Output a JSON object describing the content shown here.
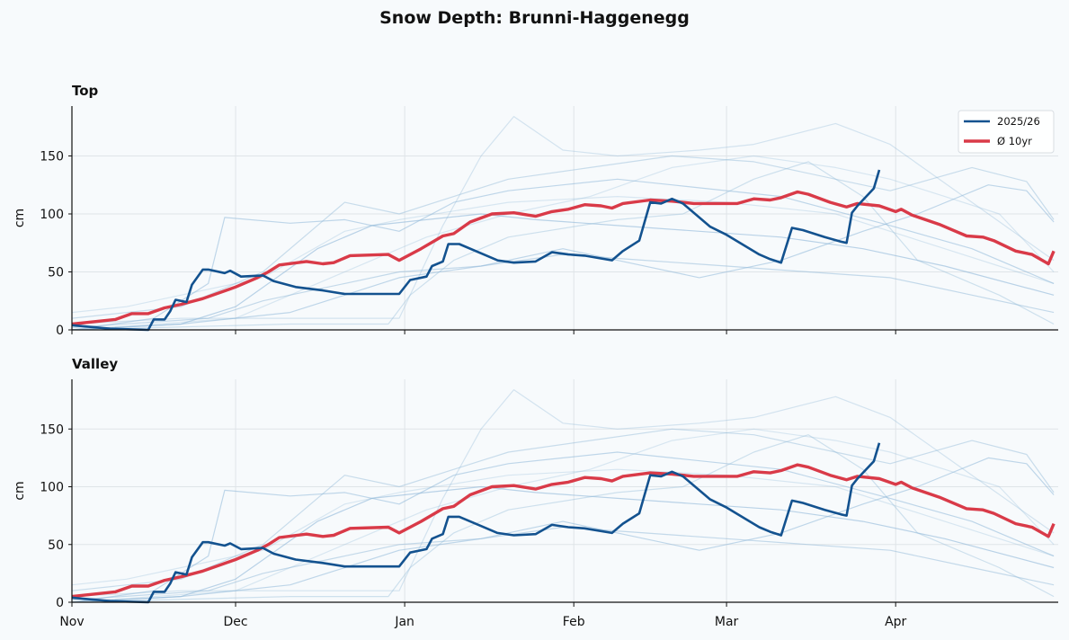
{
  "chart_data": {
    "type": "line",
    "title": "Snow Depth: Brunni-Haggenegg",
    "ylabel": "cm",
    "xlabel": "",
    "ylim": [
      0,
      193
    ],
    "xlim": [
      "11-01",
      "05-01"
    ],
    "x_tick_labels": [
      "Nov",
      "Dec",
      "Jan",
      "Feb",
      "Mar",
      "Apr"
    ],
    "y_ticks": [
      0,
      50,
      100,
      150
    ],
    "grid": true,
    "legend": {
      "placement": "top-right",
      "entries": [
        "2025/26",
        "Ø 10yr"
      ]
    },
    "colors": {
      "current": "#13528f",
      "average": "#d93a48",
      "history": "#8fb8d8",
      "background": "#f7fafc"
    },
    "subplots": [
      {
        "title": "Top",
        "show_legend": true,
        "show_x_labels": false
      },
      {
        "title": "Valley",
        "show_legend": false,
        "show_x_labels": true
      }
    ],
    "series": [
      {
        "name": "2025/26",
        "role": "current",
        "points": [
          [
            "11-01",
            4
          ],
          [
            "11-08",
            1
          ],
          [
            "11-15",
            0
          ],
          [
            "11-16",
            9
          ],
          [
            "11-18",
            9
          ],
          [
            "11-19",
            16
          ],
          [
            "11-20",
            26
          ],
          [
            "11-22",
            24
          ],
          [
            "11-23",
            39
          ],
          [
            "11-25",
            52
          ],
          [
            "11-26",
            52
          ],
          [
            "11-29",
            49
          ],
          [
            "11-30",
            51
          ],
          [
            "12-02",
            46
          ],
          [
            "12-06",
            47
          ],
          [
            "12-08",
            42
          ],
          [
            "12-12",
            37
          ],
          [
            "12-17",
            34
          ],
          [
            "12-21",
            31
          ],
          [
            "12-31",
            31
          ],
          [
            "01-02",
            43
          ],
          [
            "01-05",
            46
          ],
          [
            "01-06",
            55
          ],
          [
            "01-08",
            59
          ],
          [
            "01-09",
            74
          ],
          [
            "01-11",
            74
          ],
          [
            "01-15",
            66
          ],
          [
            "01-18",
            60
          ],
          [
            "01-21",
            58
          ],
          [
            "01-25",
            59
          ],
          [
            "01-28",
            67
          ],
          [
            "01-31",
            65
          ],
          [
            "02-03",
            64
          ],
          [
            "02-08",
            60
          ],
          [
            "02-10",
            68
          ],
          [
            "02-13",
            77
          ],
          [
            "02-15",
            110
          ],
          [
            "02-17",
            109
          ],
          [
            "02-19",
            113
          ],
          [
            "02-21",
            109
          ],
          [
            "02-26",
            89
          ],
          [
            "03-01",
            82
          ],
          [
            "03-07",
            65
          ],
          [
            "03-09",
            61
          ],
          [
            "03-11",
            58
          ],
          [
            "03-13",
            88
          ],
          [
            "03-15",
            86
          ],
          [
            "03-19",
            80
          ],
          [
            "03-22",
            76
          ],
          [
            "03-23",
            75
          ],
          [
            "03-24",
            101
          ],
          [
            "03-25",
            107
          ],
          [
            "03-28",
            122
          ],
          [
            "03-29",
            138
          ]
        ]
      },
      {
        "name": "Ø 10yr",
        "role": "average",
        "points": [
          [
            "11-01",
            5
          ],
          [
            "11-09",
            9
          ],
          [
            "11-12",
            14
          ],
          [
            "11-15",
            14
          ],
          [
            "11-18",
            19
          ],
          [
            "11-21",
            22
          ],
          [
            "11-25",
            27
          ],
          [
            "12-01",
            37
          ],
          [
            "12-05",
            45
          ],
          [
            "12-07",
            50
          ],
          [
            "12-09",
            56
          ],
          [
            "12-14",
            59
          ],
          [
            "12-17",
            57
          ],
          [
            "12-19",
            58
          ],
          [
            "12-22",
            64
          ],
          [
            "12-29",
            65
          ],
          [
            "12-31",
            60
          ],
          [
            "01-04",
            70
          ],
          [
            "01-08",
            81
          ],
          [
            "01-10",
            83
          ],
          [
            "01-13",
            93
          ],
          [
            "01-17",
            100
          ],
          [
            "01-21",
            101
          ],
          [
            "01-25",
            98
          ],
          [
            "01-28",
            102
          ],
          [
            "01-31",
            104
          ],
          [
            "02-03",
            108
          ],
          [
            "02-06",
            107
          ],
          [
            "02-08",
            105
          ],
          [
            "02-10",
            109
          ],
          [
            "02-15",
            112
          ],
          [
            "02-19",
            111
          ],
          [
            "02-23",
            109
          ],
          [
            "03-03",
            109
          ],
          [
            "03-06",
            113
          ],
          [
            "03-09",
            112
          ],
          [
            "03-11",
            114
          ],
          [
            "03-14",
            119
          ],
          [
            "03-16",
            117
          ],
          [
            "03-20",
            110
          ],
          [
            "03-23",
            106
          ],
          [
            "03-25",
            109
          ],
          [
            "03-29",
            107
          ],
          [
            "04-01",
            102
          ],
          [
            "04-02",
            104
          ],
          [
            "04-04",
            99
          ],
          [
            "04-09",
            91
          ],
          [
            "04-14",
            81
          ],
          [
            "04-17",
            80
          ],
          [
            "04-19",
            77
          ],
          [
            "04-23",
            68
          ],
          [
            "04-26",
            65
          ],
          [
            "04-29",
            57
          ],
          [
            "04-30",
            68
          ]
        ]
      },
      {
        "role": "history",
        "points": [
          [
            "11-01",
            5
          ],
          [
            "11-21",
            10
          ],
          [
            "12-31",
            10
          ],
          [
            "01-08",
            90
          ],
          [
            "01-15",
            150
          ],
          [
            "01-21",
            184
          ],
          [
            "01-30",
            155
          ],
          [
            "02-09",
            150
          ],
          [
            "02-24",
            155
          ],
          [
            "03-06",
            160
          ],
          [
            "03-21",
            178
          ],
          [
            "03-31",
            160
          ],
          [
            "04-15",
            110
          ],
          [
            "04-30",
            60
          ]
        ]
      },
      {
        "role": "history",
        "points": [
          [
            "11-01",
            0
          ],
          [
            "11-16",
            10
          ],
          [
            "11-26",
            40
          ],
          [
            "11-29",
            97
          ],
          [
            "12-11",
            92
          ],
          [
            "12-21",
            95
          ],
          [
            "12-31",
            85
          ],
          [
            "01-10",
            110
          ],
          [
            "01-20",
            120
          ],
          [
            "01-30",
            125
          ],
          [
            "02-09",
            130
          ],
          [
            "02-19",
            125
          ],
          [
            "03-11",
            115
          ],
          [
            "03-31",
            90
          ],
          [
            "04-15",
            70
          ],
          [
            "04-30",
            40
          ]
        ]
      },
      {
        "role": "history",
        "points": [
          [
            "11-01",
            10
          ],
          [
            "11-21",
            20
          ],
          [
            "12-06",
            50
          ],
          [
            "12-21",
            110
          ],
          [
            "12-31",
            100
          ],
          [
            "01-10",
            115
          ],
          [
            "01-20",
            130
          ],
          [
            "02-04",
            140
          ],
          [
            "02-19",
            150
          ],
          [
            "03-06",
            145
          ],
          [
            "03-21",
            130
          ],
          [
            "03-31",
            120
          ],
          [
            "04-15",
            140
          ],
          [
            "04-25",
            128
          ],
          [
            "04-30",
            95
          ]
        ]
      },
      {
        "role": "history",
        "points": [
          [
            "11-01",
            0
          ],
          [
            "11-21",
            5
          ],
          [
            "12-01",
            20
          ],
          [
            "12-16",
            70
          ],
          [
            "12-26",
            90
          ],
          [
            "01-05",
            95
          ],
          [
            "01-15",
            100
          ],
          [
            "01-25",
            95
          ],
          [
            "02-09",
            90
          ],
          [
            "02-24",
            85
          ],
          [
            "03-11",
            80
          ],
          [
            "03-26",
            70
          ],
          [
            "04-10",
            55
          ],
          [
            "04-30",
            30
          ]
        ]
      },
      {
        "role": "history",
        "points": [
          [
            "11-01",
            2
          ],
          [
            "11-26",
            10
          ],
          [
            "12-06",
            25
          ],
          [
            "12-21",
            40
          ],
          [
            "12-31",
            50
          ],
          [
            "01-15",
            55
          ],
          [
            "01-30",
            65
          ],
          [
            "02-14",
            60
          ],
          [
            "03-01",
            55
          ],
          [
            "03-16",
            50
          ],
          [
            "03-31",
            45
          ],
          [
            "04-15",
            30
          ],
          [
            "04-30",
            15
          ]
        ]
      },
      {
        "role": "history",
        "points": [
          [
            "11-01",
            0
          ],
          [
            "12-01",
            10
          ],
          [
            "12-11",
            30
          ],
          [
            "12-26",
            60
          ],
          [
            "01-05",
            80
          ],
          [
            "01-20",
            100
          ],
          [
            "02-04",
            115
          ],
          [
            "02-19",
            140
          ],
          [
            "03-06",
            150
          ],
          [
            "03-21",
            140
          ],
          [
            "03-31",
            130
          ],
          [
            "04-10",
            115
          ],
          [
            "04-20",
            100
          ],
          [
            "04-30",
            50
          ]
        ]
      },
      {
        "role": "history",
        "points": [
          [
            "11-01",
            0
          ],
          [
            "12-11",
            5
          ],
          [
            "12-29",
            5
          ],
          [
            "01-02",
            30
          ],
          [
            "01-10",
            60
          ],
          [
            "01-20",
            80
          ],
          [
            "02-09",
            95
          ],
          [
            "02-21",
            100
          ],
          [
            "03-06",
            130
          ],
          [
            "03-16",
            145
          ],
          [
            "03-26",
            115
          ],
          [
            "04-05",
            60
          ],
          [
            "04-20",
            30
          ],
          [
            "04-30",
            5
          ]
        ]
      },
      {
        "role": "history",
        "points": [
          [
            "11-01",
            0
          ],
          [
            "11-21",
            5
          ],
          [
            "12-11",
            15
          ],
          [
            "12-21",
            30
          ],
          [
            "12-31",
            45
          ],
          [
            "01-15",
            55
          ],
          [
            "01-30",
            70
          ],
          [
            "02-09",
            60
          ],
          [
            "02-24",
            45
          ],
          [
            "03-11",
            60
          ],
          [
            "03-26",
            85
          ],
          [
            "04-05",
            100
          ],
          [
            "04-18",
            125
          ],
          [
            "04-25",
            120
          ],
          [
            "04-30",
            93
          ]
        ]
      },
      {
        "role": "history",
        "points": [
          [
            "11-01",
            15
          ],
          [
            "11-11",
            20
          ],
          [
            "11-21",
            30
          ],
          [
            "12-06",
            45
          ],
          [
            "12-21",
            85
          ],
          [
            "12-31",
            95
          ],
          [
            "01-20",
            110
          ],
          [
            "02-09",
            115
          ],
          [
            "03-01",
            110
          ],
          [
            "03-21",
            100
          ],
          [
            "04-10",
            70
          ],
          [
            "04-30",
            40
          ]
        ]
      }
    ]
  }
}
